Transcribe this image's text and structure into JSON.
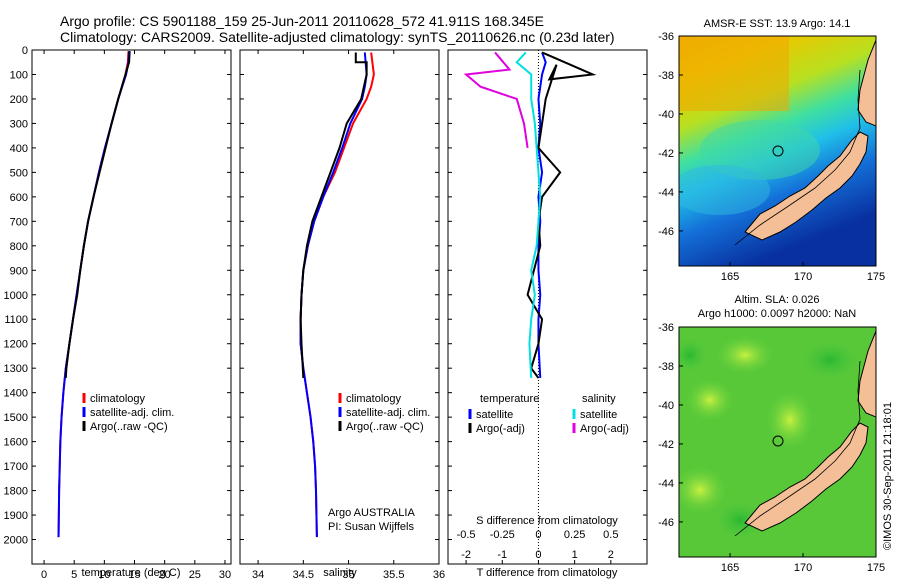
{
  "titles": {
    "line1": "Argo profile: CS 5901188_159 25-Jun-2011 20110628_572 41.911S 168.345E",
    "line2": "Climatology: CARS2009. Satellite-adjusted climatology: synTS_20110626.nc (0.23d later)"
  },
  "colors": {
    "climatology": "#ff0000",
    "satellite": "#0000ff",
    "argo": "#000000",
    "sal_satellite": "#00e0e0",
    "sal_argo": "#e000e0"
  },
  "chart_data": [
    {
      "type": "line",
      "id": "temperature",
      "xlabel": "temperature (deg C)",
      "ylabel": "",
      "xlim": [
        -2,
        31
      ],
      "ylim": [
        0,
        2100
      ],
      "y_reversed": true,
      "xticks": [
        0,
        5,
        10,
        15,
        20,
        25,
        30
      ],
      "yticks": [
        0,
        100,
        200,
        300,
        400,
        500,
        600,
        700,
        800,
        900,
        1000,
        1100,
        1200,
        1300,
        1400,
        1500,
        1600,
        1700,
        1800,
        1900,
        2000
      ],
      "legend": [
        "climatology",
        "satellite-adj. clim.",
        "Argo(..raw -QC)"
      ],
      "series": [
        {
          "name": "climatology",
          "color": "#ff0000",
          "x": [
            14.0,
            13.9,
            13.5,
            12.3,
            11.2,
            10.1,
            9.1,
            8.2,
            7.3,
            6.6,
            6.0,
            5.4,
            4.8,
            4.2,
            3.6,
            3.2,
            2.9,
            2.7,
            2.6,
            2.5,
            2.4
          ],
          "y": [
            5,
            50,
            100,
            200,
            300,
            400,
            500,
            600,
            700,
            800,
            900,
            1000,
            1100,
            1200,
            1300,
            1400,
            1500,
            1600,
            1700,
            1800,
            1990
          ]
        },
        {
          "name": "satellite-adj. clim.",
          "color": "#0000ff",
          "x": [
            14.1,
            14.0,
            13.6,
            12.3,
            11.2,
            10.1,
            9.1,
            8.2,
            7.3,
            6.6,
            6.0,
            5.4,
            4.8,
            4.2,
            3.6,
            3.2,
            2.9,
            2.7,
            2.6,
            2.5,
            2.4
          ],
          "y": [
            5,
            50,
            100,
            200,
            300,
            400,
            500,
            600,
            700,
            800,
            900,
            1000,
            1100,
            1200,
            1300,
            1400,
            1500,
            1600,
            1700,
            1800,
            1990
          ]
        },
        {
          "name": "Argo(..raw -QC)",
          "color": "#000000",
          "x": [
            14.2,
            14.1,
            13.5,
            12.3,
            11.2,
            10.2,
            9.2,
            8.2,
            7.3,
            6.6,
            6.0,
            5.5,
            4.8,
            4.2,
            3.7,
            3.6
          ],
          "y": [
            5,
            50,
            100,
            200,
            300,
            400,
            500,
            600,
            700,
            800,
            900,
            1000,
            1100,
            1200,
            1300,
            1340
          ]
        }
      ]
    },
    {
      "type": "line",
      "id": "salinity",
      "xlabel": "salinity",
      "xlim": [
        33.8,
        36.0
      ],
      "ylim": [
        0,
        2100
      ],
      "y_reversed": true,
      "xticks": [
        34,
        34.5,
        35,
        35.5,
        36
      ],
      "legend": [
        "climatology",
        "satellite-adj. clim.",
        "Argo(..raw -QC)"
      ],
      "annotation": [
        "Argo AUSTRALIA",
        "PI: Susan Wijffels"
      ],
      "series": [
        {
          "name": "climatology",
          "color": "#ff0000",
          "x": [
            35.25,
            35.28,
            35.25,
            35.2,
            35.05,
            34.95,
            34.85,
            34.72,
            34.62,
            34.55,
            34.5,
            34.48,
            34.47,
            34.47,
            34.5,
            34.54,
            34.58,
            34.61,
            34.63,
            34.64,
            34.65
          ],
          "y": [
            10,
            100,
            150,
            200,
            300,
            400,
            500,
            600,
            700,
            800,
            900,
            1000,
            1100,
            1200,
            1300,
            1400,
            1500,
            1600,
            1700,
            1800,
            1990
          ]
        },
        {
          "name": "satellite-adj. clim.",
          "color": "#0000ff",
          "x": [
            35.18,
            35.2,
            35.18,
            35.15,
            35.02,
            34.93,
            34.83,
            34.72,
            34.62,
            34.55,
            34.5,
            34.48,
            34.47,
            34.47,
            34.5,
            34.54,
            34.58,
            34.61,
            34.63,
            34.64,
            34.65
          ],
          "y": [
            10,
            100,
            150,
            200,
            300,
            400,
            500,
            600,
            700,
            800,
            900,
            1000,
            1100,
            1200,
            1300,
            1400,
            1500,
            1600,
            1700,
            1800,
            1990
          ]
        },
        {
          "name": "Argo(..raw -QC)",
          "color": "#000000",
          "x": [
            35.08,
            35.08,
            35.2,
            35.2,
            35.14,
            34.98,
            34.9,
            34.8,
            34.7,
            34.6,
            34.54,
            34.5,
            34.48,
            34.47,
            34.48,
            34.5
          ],
          "y": [
            10,
            50,
            50,
            100,
            200,
            300,
            400,
            500,
            600,
            700,
            800,
            900,
            1000,
            1100,
            1200,
            1340
          ]
        }
      ]
    },
    {
      "type": "line",
      "id": "differences",
      "xlabel_bottom": "T difference from climatology",
      "xlabel_top": "S difference from climatology",
      "xlim": [
        -2.5,
        3.0
      ],
      "ylim": [
        0,
        2100
      ],
      "y_reversed": true,
      "xticks_T": [
        -2,
        -1,
        0,
        1,
        2
      ],
      "xticks_S": [
        "-0.5",
        "-0.25",
        "0",
        "0.25",
        "0.5"
      ],
      "legend_left_title": "temperature",
      "legend_right_title": "salinity",
      "legend": [
        "satellite",
        "Argo(-adj)",
        "satellite",
        "Argo(-adj)"
      ],
      "series": [
        {
          "name": "temperature satellite",
          "color": "#0000ff",
          "x": [
            0.1,
            0.2,
            0.1,
            0.0,
            0.05,
            0.0,
            0.1,
            0.0,
            0.05,
            0.0,
            0.0,
            0.05,
            0.0,
            0.0,
            0.05
          ],
          "y": [
            10,
            50,
            100,
            200,
            300,
            400,
            500,
            600,
            700,
            800,
            900,
            1000,
            1100,
            1200,
            1340
          ]
        },
        {
          "name": "temperature Argo(-adj)",
          "color": "#000000",
          "x": [
            0.1,
            1.5,
            0.3,
            0.5,
            0.2,
            0.1,
            0.0,
            0.6,
            0.1,
            0.0,
            0.05,
            -0.3,
            0.1,
            0.0,
            -0.2,
            0.0
          ],
          "y": [
            10,
            100,
            120,
            60,
            200,
            300,
            400,
            500,
            600,
            700,
            800,
            1000,
            1100,
            1200,
            1300,
            1340
          ]
        },
        {
          "name": "salinity satellite",
          "color": "#00e0e0",
          "x": [
            -0.35,
            -0.6,
            -0.2,
            -0.2,
            -0.1,
            -0.05,
            0.0,
            0.05,
            0.0,
            -0.05,
            -0.2,
            -0.1,
            -0.2,
            -0.25,
            -0.2
          ],
          "y": [
            10,
            50,
            100,
            200,
            300,
            400,
            500,
            600,
            700,
            800,
            900,
            1000,
            1100,
            1200,
            1340
          ]
        },
        {
          "name": "salinity Argo(-adj)",
          "color": "#e000e0",
          "x": [
            -1.2,
            -0.8,
            -2.0,
            -1.6,
            -0.6,
            -0.4,
            -0.3
          ],
          "y": [
            10,
            80,
            100,
            150,
            200,
            300,
            400
          ]
        }
      ]
    },
    {
      "type": "heatmap",
      "id": "sst_map",
      "title": "AMSR-E SST: 13.9 Argo: 14.1",
      "xlim": [
        161.5,
        175
      ],
      "ylim": [
        -47.8,
        -36
      ],
      "xticks": [
        165,
        170,
        175
      ],
      "yticks": [
        -36,
        -38,
        -40,
        -42,
        -44,
        -46
      ],
      "argo_position": [
        168.345,
        -41.911
      ]
    },
    {
      "type": "heatmap",
      "id": "sla_map",
      "title": [
        "Altim. SLA: 0.026",
        "Argo h1000: 0.0097 h2000: NaN"
      ],
      "xlim": [
        161.5,
        175
      ],
      "ylim": [
        -47.8,
        -36
      ],
      "xticks": [
        165,
        170,
        175
      ],
      "yticks": [
        -36,
        -38,
        -40,
        -42,
        -44,
        -46
      ],
      "argo_position": [
        168.345,
        -41.911
      ]
    }
  ],
  "footer_stamp": "©IMOS 30-Sep-2011 21:18:01"
}
